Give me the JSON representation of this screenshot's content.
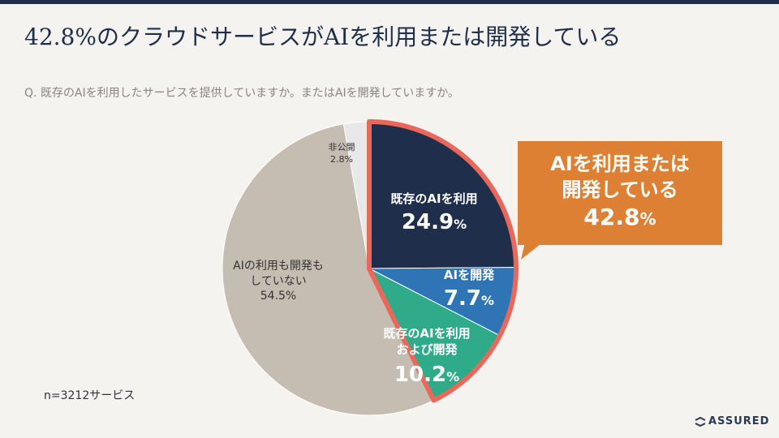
{
  "title": "42.8%のクラウドサービスがAIを利用または開発している",
  "question": "Q. 既存のAIを利用したサービスを提供していますか。またはAIを開発していますか。",
  "chart_data": {
    "type": "pie",
    "slices": [
      {
        "label": "既存のAIを利用",
        "value": 24.9,
        "value_text": "24.9",
        "color": "#1f2e4a"
      },
      {
        "label": "AIを開発",
        "value": 7.7,
        "value_text": "7.7",
        "color": "#2f75b5"
      },
      {
        "label": "既存のAIを利用\nおよび開発",
        "value": 10.2,
        "value_text": "10.2",
        "color": "#2fab8a"
      },
      {
        "label": "AIの利用も開発も\nしていない",
        "value": 54.5,
        "value_text": "54.5%",
        "color": "#c6bdb2"
      },
      {
        "label": "非公開",
        "value": 2.8,
        "value_text": "2.8%",
        "color": "#e8e8ea"
      }
    ],
    "percent_suffix": "%",
    "highlight": {
      "color": "#e9685a",
      "slices": [
        0,
        1,
        2
      ]
    }
  },
  "callout": {
    "line1": "AIを利用または",
    "line2": "開発している",
    "value": "42.8",
    "suffix": "%",
    "color": "#de8033"
  },
  "sample_note": "n=3212サービス",
  "logo": {
    "text": "ASSURED",
    "icon": "assured-logo-icon"
  }
}
